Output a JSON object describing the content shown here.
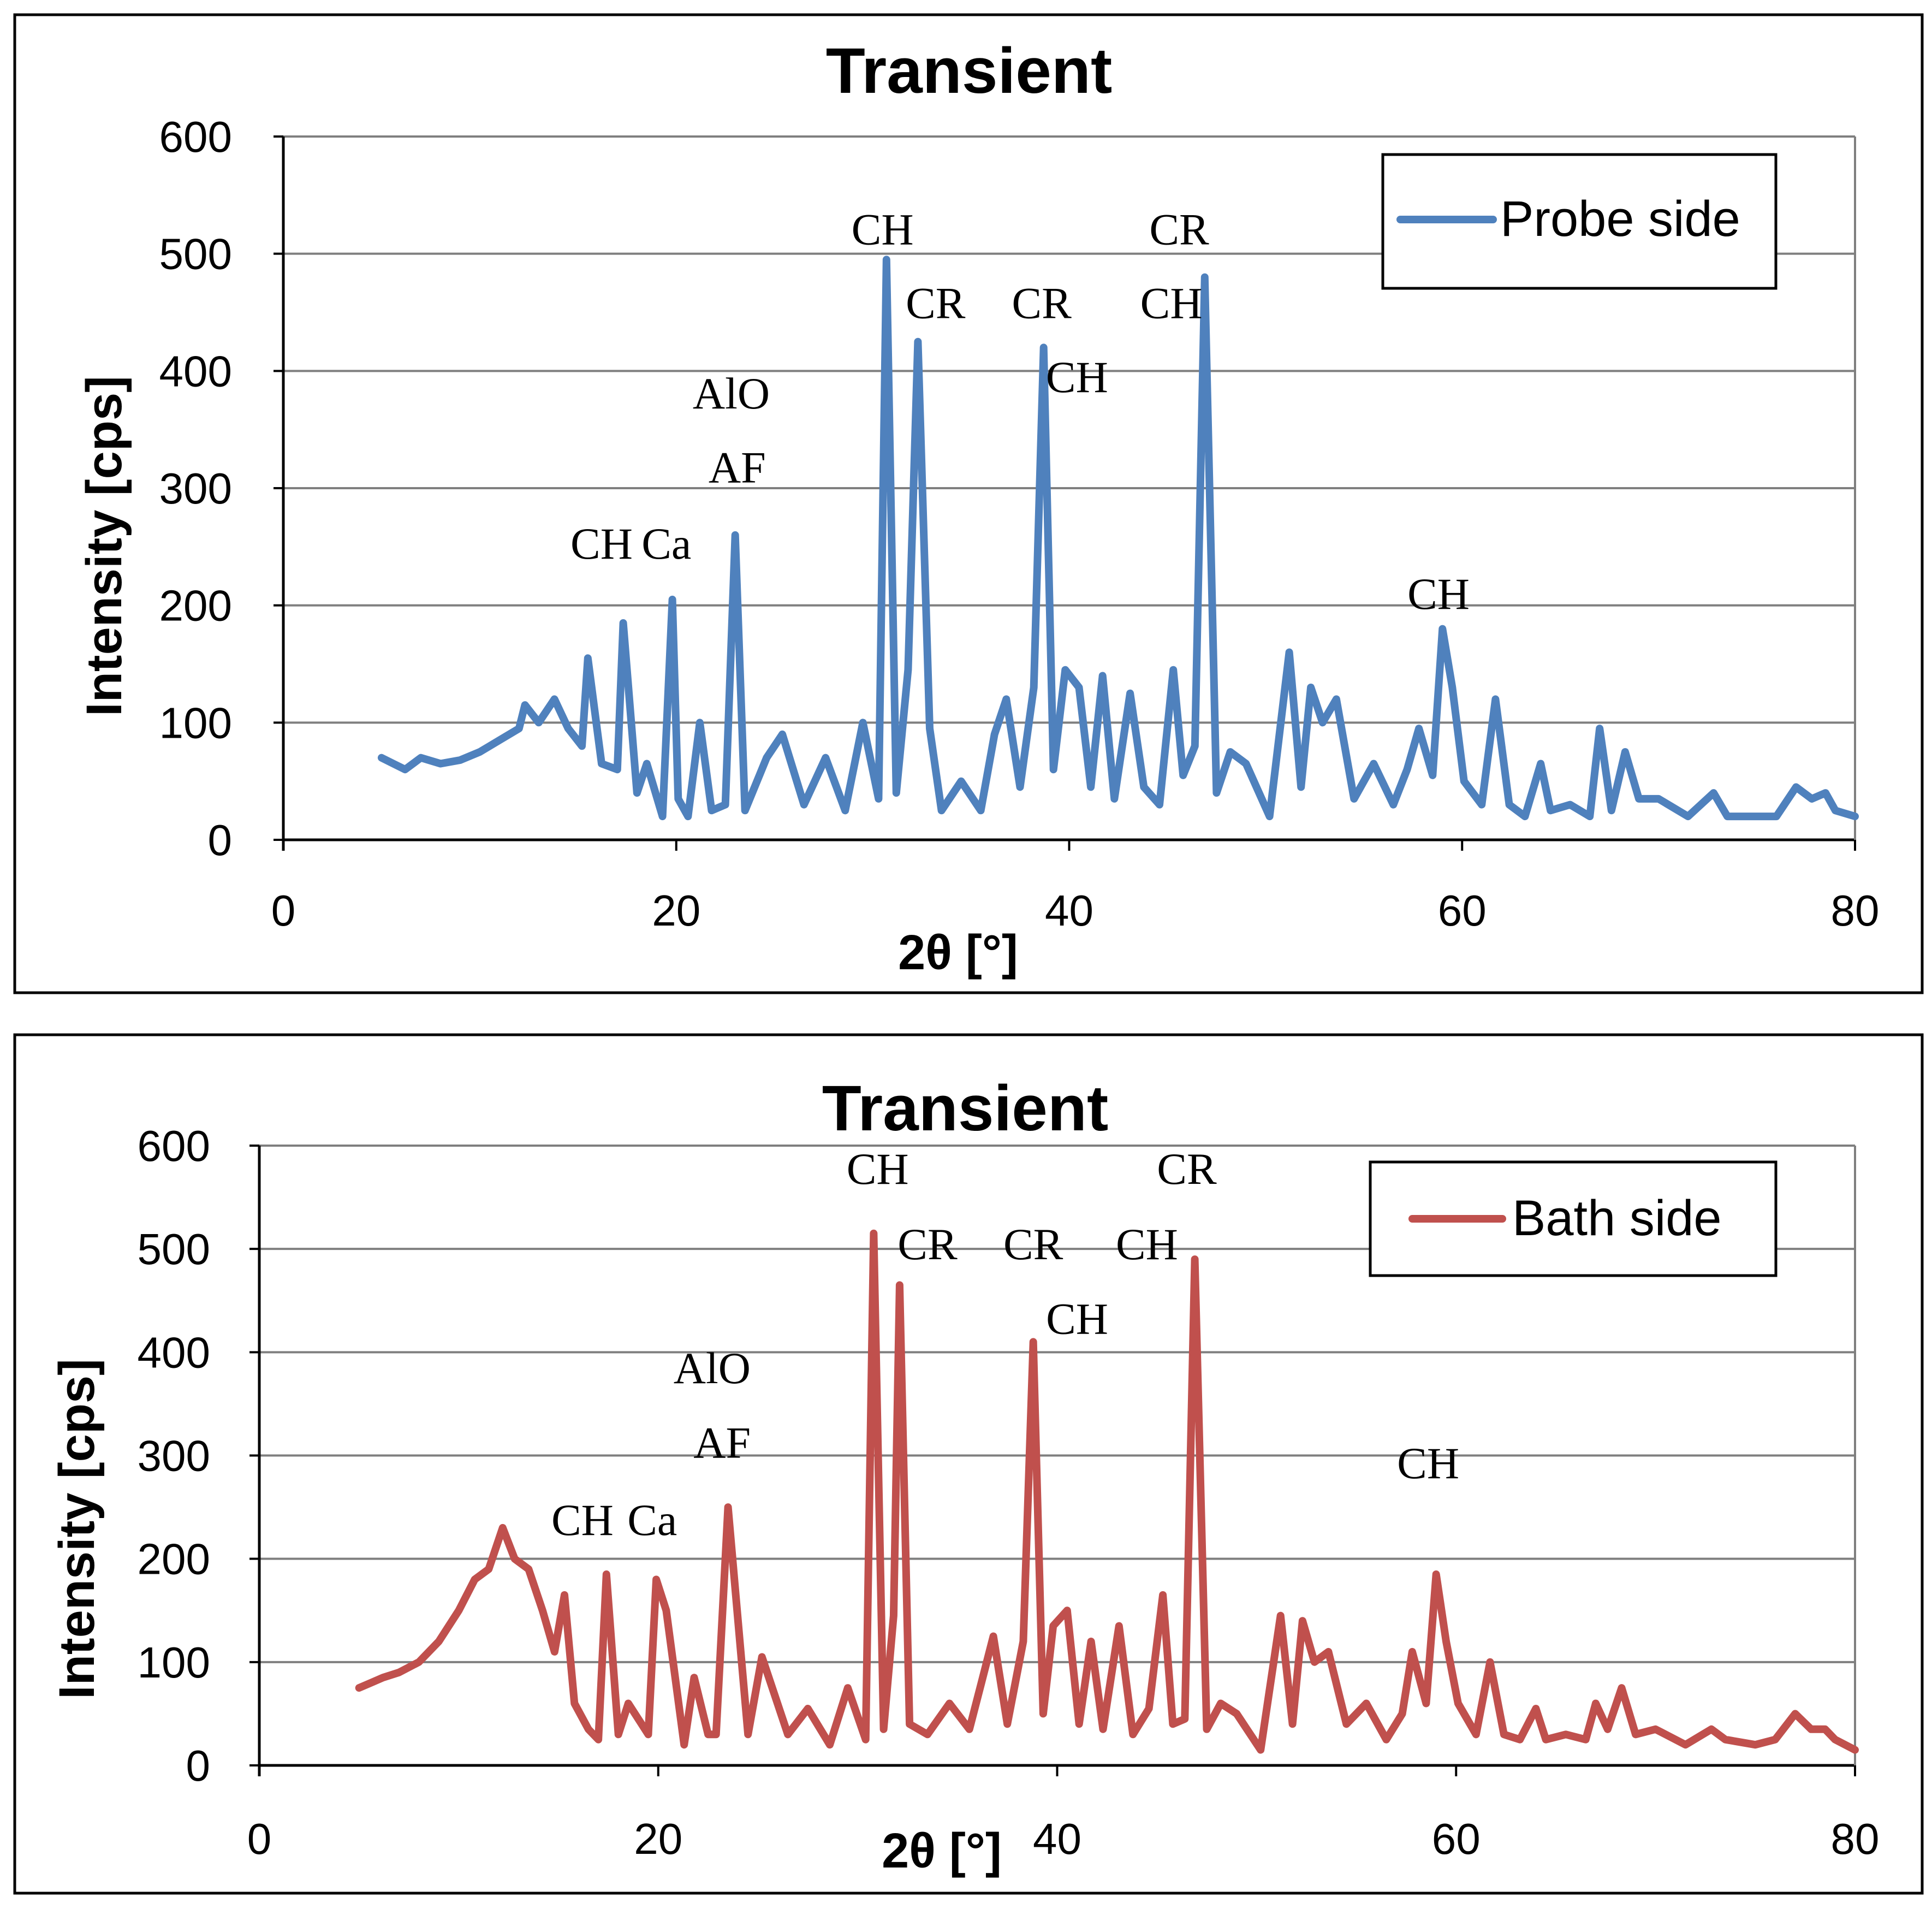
{
  "chart_data": [
    {
      "type": "line",
      "title": "Transient",
      "xlabel": "2θ [°]",
      "ylabel": "Intensity [cps]",
      "xlim": [
        0,
        80
      ],
      "ylim": [
        0,
        600
      ],
      "x_ticks": [
        "0",
        "20",
        "40",
        "60",
        "80"
      ],
      "y_ticks": [
        "0",
        "100",
        "200",
        "300",
        "400",
        "500",
        "600"
      ],
      "grid": true,
      "legend_position": "top-right",
      "series": [
        {
          "name": "Probe side",
          "color": "#4f81bd",
          "x": [
            5,
            5.6,
            6.2,
            7,
            8,
            9,
            10,
            11,
            12,
            12.3,
            13,
            13.8,
            14.5,
            15.2,
            15.5,
            16.2,
            17,
            17.3,
            18,
            18.5,
            19.3,
            19.8,
            20.1,
            20.6,
            21.2,
            21.8,
            22.5,
            23,
            23.5,
            24.6,
            25.4,
            26.5,
            27.6,
            28.6,
            29.5,
            30.3,
            30.7,
            31.2,
            31.8,
            32.3,
            32.9,
            33.5,
            34.5,
            35.5,
            36.2,
            36.8,
            37.5,
            38.2,
            38.7,
            39.2,
            39.8,
            40.5,
            41.1,
            41.7,
            42.3,
            43.1,
            43.8,
            44.6,
            45.3,
            45.8,
            46.4,
            46.9,
            47.5,
            48.2,
            49,
            50.2,
            51.2,
            51.8,
            52.3,
            52.9,
            53.6,
            54.5,
            55.5,
            56.5,
            57.2,
            57.8,
            58.5,
            59,
            59.5,
            60.1,
            61,
            61.7,
            62.4,
            63.2,
            64,
            64.5,
            65.5,
            66.5,
            67,
            67.6,
            68.3,
            69,
            70,
            71.5,
            72.8,
            73.5,
            75,
            76,
            77,
            77.8,
            78.5,
            79,
            80
          ],
          "y": [
            70,
            65,
            60,
            70,
            65,
            68,
            75,
            85,
            95,
            115,
            100,
            120,
            95,
            80,
            155,
            65,
            60,
            185,
            40,
            65,
            20,
            205,
            35,
            20,
            100,
            25,
            30,
            260,
            25,
            70,
            90,
            30,
            70,
            25,
            100,
            35,
            495,
            40,
            145,
            425,
            95,
            25,
            50,
            25,
            90,
            120,
            45,
            130,
            420,
            60,
            145,
            130,
            45,
            140,
            35,
            125,
            45,
            30,
            145,
            55,
            80,
            480,
            40,
            75,
            65,
            20,
            160,
            45,
            130,
            100,
            120,
            35,
            65,
            30,
            60,
            95,
            55,
            180,
            130,
            50,
            30,
            120,
            30,
            20,
            65,
            25,
            30,
            20,
            95,
            25,
            75,
            35,
            35,
            20,
            40,
            20,
            20,
            20,
            45,
            35,
            40,
            25,
            20
          ]
        }
      ],
      "annotations": [
        {
          "text": "CH",
          "x": 16.2,
          "y": 240
        },
        {
          "text": "Ca",
          "x": 19.5,
          "y": 240
        },
        {
          "text": "AlO",
          "x": 22.8,
          "y": 368
        },
        {
          "text": "AF",
          "x": 23.1,
          "y": 305
        },
        {
          "text": "CH",
          "x": 30.5,
          "y": 508
        },
        {
          "text": "CR",
          "x": 33.2,
          "y": 445
        },
        {
          "text": "CR",
          "x": 38.6,
          "y": 445
        },
        {
          "text": "CH",
          "x": 40.4,
          "y": 382
        },
        {
          "text": "CR",
          "x": 45.6,
          "y": 508
        },
        {
          "text": "CH",
          "x": 45.2,
          "y": 445
        },
        {
          "text": "CH",
          "x": 58.8,
          "y": 197
        }
      ]
    },
    {
      "type": "line",
      "title": "Transient",
      "xlabel": "2θ [°]",
      "ylabel": "Intensity [cps]",
      "xlim": [
        0,
        80
      ],
      "ylim": [
        0,
        600
      ],
      "x_ticks": [
        "0",
        "20",
        "40",
        "60",
        "80"
      ],
      "y_ticks": [
        "0",
        "100",
        "200",
        "300",
        "400",
        "500",
        "600"
      ],
      "grid": true,
      "legend_position": "top-right",
      "series": [
        {
          "name": "Bath side",
          "color": "#c0504d",
          "x": [
            5,
            5.6,
            6.2,
            7,
            8,
            9,
            10,
            10.8,
            11.5,
            12.2,
            12.8,
            13.5,
            14.2,
            14.8,
            15.3,
            15.8,
            16.5,
            17,
            17.4,
            18,
            18.5,
            19.5,
            19.9,
            20.4,
            21.3,
            21.8,
            22.5,
            22.9,
            23.5,
            24.5,
            25.2,
            26.5,
            27.5,
            28.6,
            29.5,
            30.4,
            30.8,
            31.3,
            31.8,
            32.1,
            32.6,
            33.5,
            34.6,
            35.6,
            36.2,
            36.8,
            37.5,
            38.3,
            38.8,
            39.3,
            39.8,
            40.5,
            41.1,
            41.7,
            42.3,
            43.1,
            43.8,
            44.6,
            45.3,
            45.8,
            46.4,
            46.9,
            47.5,
            48.2,
            49,
            50.2,
            51.2,
            51.8,
            52.3,
            52.9,
            53.6,
            54.5,
            55.5,
            56.5,
            57.3,
            57.8,
            58.5,
            59,
            59.5,
            60.1,
            61,
            61.7,
            62.4,
            63.2,
            64,
            64.5,
            65.5,
            66.5,
            67,
            67.6,
            68.3,
            69,
            70,
            71.5,
            72.8,
            73.5,
            75,
            76,
            77,
            77.8,
            78.5,
            79,
            80
          ],
          "y": [
            75,
            80,
            85,
            90,
            100,
            120,
            150,
            180,
            190,
            230,
            200,
            190,
            150,
            110,
            165,
            60,
            35,
            25,
            185,
            30,
            60,
            30,
            180,
            150,
            20,
            85,
            30,
            30,
            250,
            30,
            105,
            30,
            55,
            20,
            75,
            25,
            515,
            35,
            145,
            465,
            40,
            30,
            60,
            35,
            80,
            125,
            40,
            120,
            410,
            50,
            135,
            150,
            40,
            120,
            35,
            135,
            30,
            55,
            165,
            40,
            45,
            490,
            35,
            60,
            50,
            15,
            145,
            40,
            140,
            100,
            110,
            40,
            60,
            25,
            50,
            110,
            60,
            185,
            120,
            60,
            30,
            100,
            30,
            25,
            55,
            25,
            30,
            25,
            60,
            35,
            75,
            30,
            35,
            20,
            35,
            25,
            20,
            25,
            50,
            35,
            35,
            25,
            15
          ]
        }
      ],
      "annotations": [
        {
          "text": "CH",
          "x": 16.2,
          "y": 223
        },
        {
          "text": "Ca",
          "x": 19.7,
          "y": 223
        },
        {
          "text": "AlO",
          "x": 22.7,
          "y": 370
        },
        {
          "text": "AF",
          "x": 23.2,
          "y": 298
        },
        {
          "text": "CH",
          "x": 31,
          "y": 563
        },
        {
          "text": "CR",
          "x": 33.5,
          "y": 490
        },
        {
          "text": "CR",
          "x": 38.8,
          "y": 490
        },
        {
          "text": "CH",
          "x": 41,
          "y": 418
        },
        {
          "text": "CR",
          "x": 46.5,
          "y": 563
        },
        {
          "text": "CH",
          "x": 44.5,
          "y": 490
        },
        {
          "text": "CH",
          "x": 58.6,
          "y": 278
        }
      ]
    }
  ]
}
